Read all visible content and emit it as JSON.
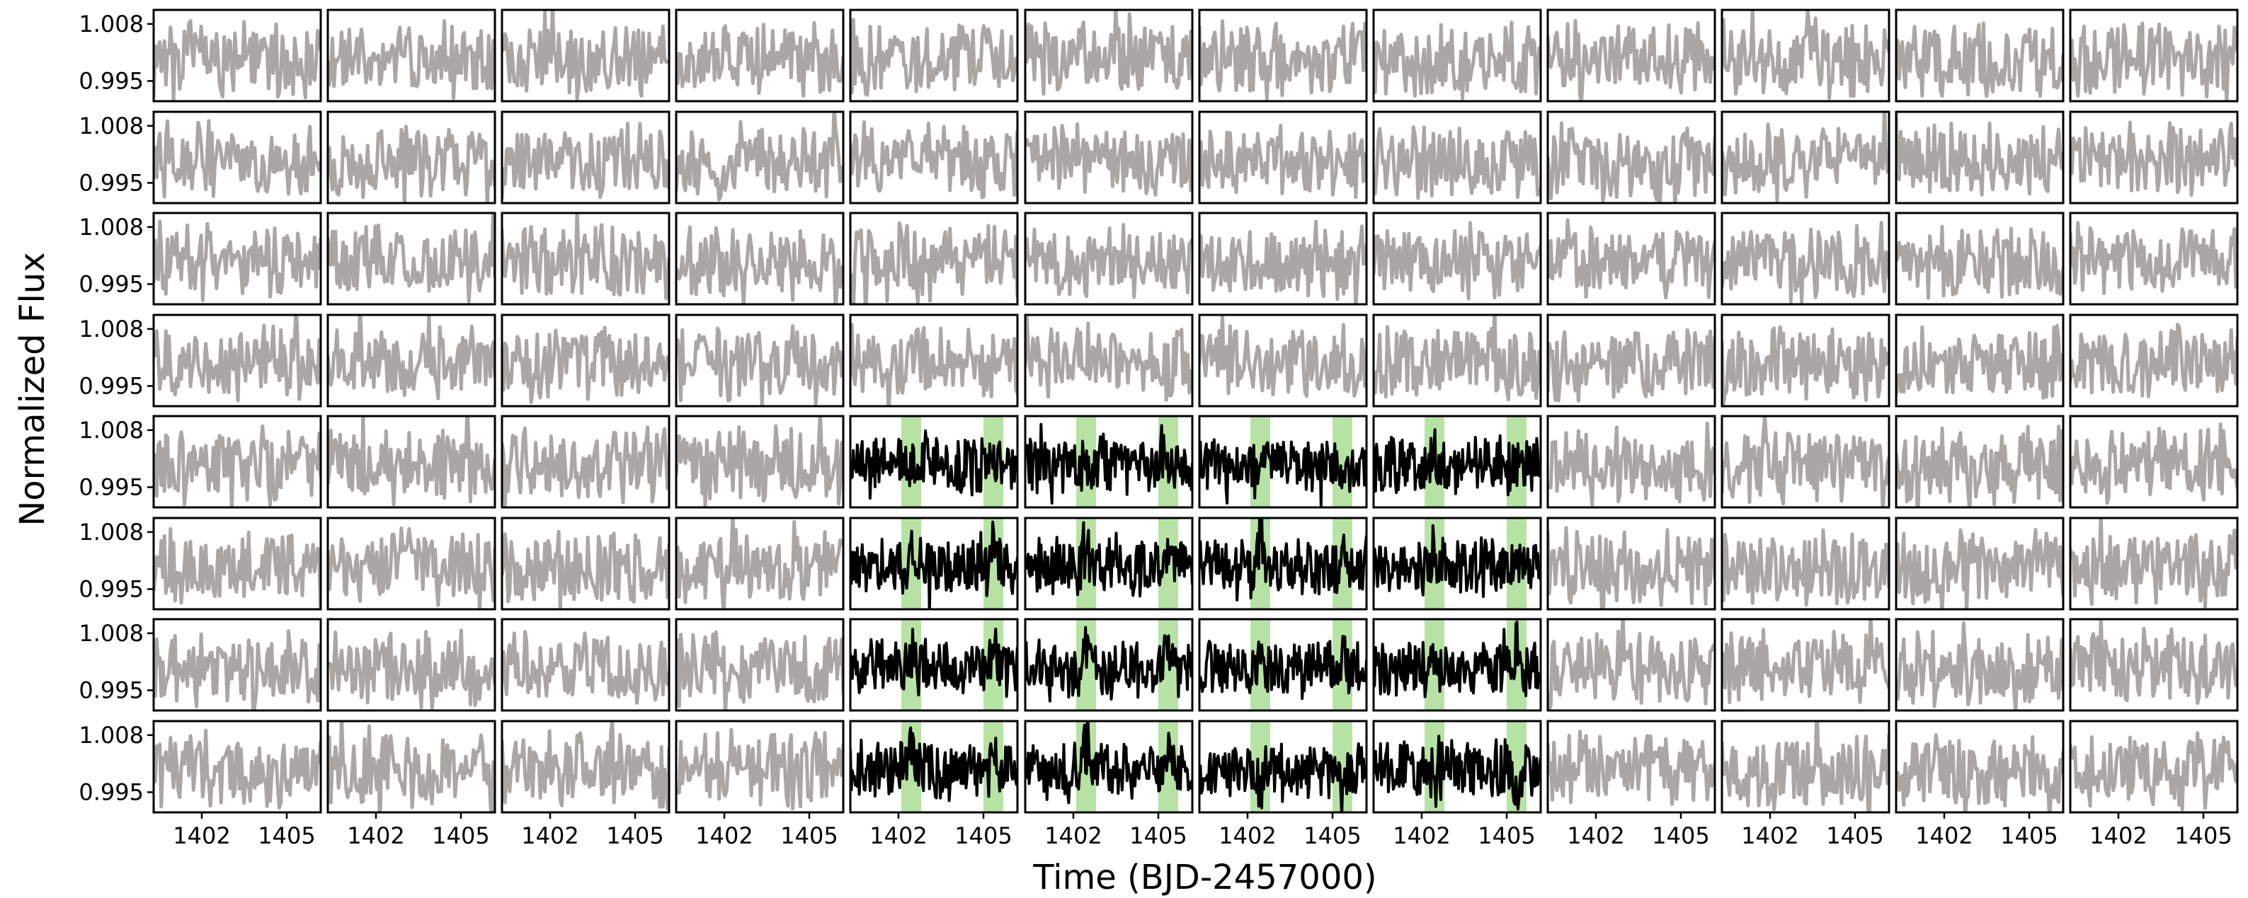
{
  "figure": {
    "xlabel": "Time (BJD-2457000)",
    "ylabel": "Normalized Flux"
  },
  "chart_data": {
    "type": "line",
    "grid": {
      "rows": 8,
      "cols": 12
    },
    "xlabel": "Time (BJD-2457000)",
    "ylabel": "Normalized Flux",
    "xlim": [
      1400.3,
      1406.2
    ],
    "ylim": [
      0.9904,
      1.0112
    ],
    "xticks": [
      1402,
      1405
    ],
    "xtick_labels": [
      "1402",
      "1405"
    ],
    "yticks": [
      0.995,
      1.008
    ],
    "ytick_labels": [
      "0.995",
      "1.008"
    ],
    "baseline_flux": 1.0,
    "highlight_bands": [
      {
        "x_start": 1402.1,
        "x_end": 1402.8
      },
      {
        "x_start": 1405.0,
        "x_end": 1405.7
      }
    ],
    "highlighted_block": {
      "rows": [
        5,
        8
      ],
      "cols": [
        5,
        8
      ]
    },
    "colors": {
      "background_series": "#aaa6a3",
      "target_series": "#000000",
      "highlight_band": "#b6e3a4"
    },
    "grid_on": false
  }
}
